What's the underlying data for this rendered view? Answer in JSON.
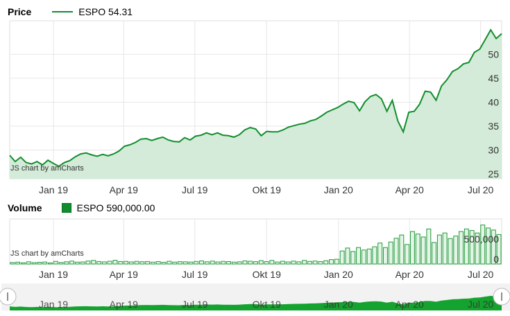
{
  "price_panel": {
    "title": "Price",
    "legend": "ESPO 54.31",
    "credit": "JS chart by amCharts"
  },
  "volume_panel": {
    "title": "Volume",
    "legend": "ESPO 590,000.00",
    "credit": "JS chart by amCharts"
  },
  "toolbar": {
    "draw_icon": "pencil-icon",
    "erase_icon": "eraser-icon"
  },
  "colors": {
    "line": "#118d2d",
    "fill": "#d3ebd8",
    "bar_fill": "#e4f4e6",
    "bar_stroke": "#1f9a3a",
    "scroll_fill": "#14a32e"
  },
  "chart_data": [
    {
      "type": "line",
      "title": "Price",
      "series": [
        {
          "name": "ESPO",
          "last": 54.31
        }
      ],
      "x_ticks": [
        "Jan 19",
        "Apr 19",
        "Jul 19",
        "Okt 19",
        "Jan 20",
        "Apr 20",
        "Jul 20"
      ],
      "y_ticks": [
        25,
        30,
        35,
        40,
        45,
        50
      ],
      "ylim": [
        24,
        57
      ],
      "points": [
        [
          "2018-11-06",
          28.9
        ],
        [
          "2018-11-13",
          27.6
        ],
        [
          "2018-11-20",
          28.5
        ],
        [
          "2018-11-27",
          27.4
        ],
        [
          "2018-12-04",
          27.1
        ],
        [
          "2018-12-11",
          27.6
        ],
        [
          "2018-12-18",
          26.9
        ],
        [
          "2018-12-25",
          27.9
        ],
        [
          "2019-01-01",
          27.2
        ],
        [
          "2019-01-08",
          26.6
        ],
        [
          "2019-01-15",
          27.4
        ],
        [
          "2019-01-22",
          27.8
        ],
        [
          "2019-01-29",
          28.6
        ],
        [
          "2019-02-05",
          29.2
        ],
        [
          "2019-02-12",
          29.4
        ],
        [
          "2019-02-19",
          29.0
        ],
        [
          "2019-02-26",
          28.7
        ],
        [
          "2019-03-05",
          29.1
        ],
        [
          "2019-03-12",
          28.8
        ],
        [
          "2019-03-19",
          29.2
        ],
        [
          "2019-03-26",
          29.8
        ],
        [
          "2019-04-02",
          30.8
        ],
        [
          "2019-04-09",
          31.1
        ],
        [
          "2019-04-16",
          31.6
        ],
        [
          "2019-04-23",
          32.3
        ],
        [
          "2019-04-30",
          32.4
        ],
        [
          "2019-05-07",
          32.0
        ],
        [
          "2019-05-14",
          32.4
        ],
        [
          "2019-05-21",
          32.7
        ],
        [
          "2019-05-28",
          32.1
        ],
        [
          "2019-06-04",
          31.8
        ],
        [
          "2019-06-11",
          31.7
        ],
        [
          "2019-06-18",
          32.6
        ],
        [
          "2019-06-25",
          32.1
        ],
        [
          "2019-07-02",
          32.9
        ],
        [
          "2019-07-09",
          33.1
        ],
        [
          "2019-07-16",
          33.6
        ],
        [
          "2019-07-23",
          33.2
        ],
        [
          "2019-07-30",
          33.6
        ],
        [
          "2019-08-06",
          33.1
        ],
        [
          "2019-08-13",
          33.0
        ],
        [
          "2019-08-20",
          32.7
        ],
        [
          "2019-08-27",
          33.2
        ],
        [
          "2019-09-03",
          34.2
        ],
        [
          "2019-09-10",
          34.7
        ],
        [
          "2019-09-17",
          34.4
        ],
        [
          "2019-09-24",
          33.0
        ],
        [
          "2019-10-01",
          33.9
        ],
        [
          "2019-10-08",
          33.8
        ],
        [
          "2019-10-15",
          33.8
        ],
        [
          "2019-10-22",
          34.2
        ],
        [
          "2019-10-29",
          34.8
        ],
        [
          "2019-11-05",
          35.1
        ],
        [
          "2019-11-12",
          35.4
        ],
        [
          "2019-11-19",
          35.6
        ],
        [
          "2019-11-26",
          36.1
        ],
        [
          "2019-12-03",
          36.4
        ],
        [
          "2019-12-10",
          37.1
        ],
        [
          "2019-12-17",
          37.9
        ],
        [
          "2019-12-24",
          38.4
        ],
        [
          "2019-12-31",
          38.9
        ],
        [
          "2020-01-07",
          39.6
        ],
        [
          "2020-01-14",
          40.2
        ],
        [
          "2020-01-21",
          39.9
        ],
        [
          "2020-01-28",
          38.2
        ],
        [
          "2020-02-04",
          40.1
        ],
        [
          "2020-02-11",
          41.2
        ],
        [
          "2020-02-18",
          41.6
        ],
        [
          "2020-02-25",
          40.7
        ],
        [
          "2020-03-03",
          38.1
        ],
        [
          "2020-03-10",
          40.4
        ],
        [
          "2020-03-17",
          36.1
        ],
        [
          "2020-03-24",
          33.8
        ],
        [
          "2020-03-31",
          37.9
        ],
        [
          "2020-04-07",
          38.1
        ],
        [
          "2020-04-14",
          39.6
        ],
        [
          "2020-04-21",
          42.3
        ],
        [
          "2020-04-28",
          42.1
        ],
        [
          "2020-05-05",
          40.4
        ],
        [
          "2020-05-12",
          43.4
        ],
        [
          "2020-05-19",
          44.7
        ],
        [
          "2020-05-26",
          46.4
        ],
        [
          "2020-06-02",
          47.0
        ],
        [
          "2020-06-09",
          48.0
        ],
        [
          "2020-06-16",
          48.3
        ],
        [
          "2020-06-23",
          50.4
        ],
        [
          "2020-06-30",
          51.1
        ],
        [
          "2020-07-07",
          53.1
        ],
        [
          "2020-07-14",
          55.1
        ],
        [
          "2020-07-21",
          53.3
        ],
        [
          "2020-07-28",
          54.31
        ]
      ]
    },
    {
      "type": "bar",
      "title": "Volume",
      "series": [
        {
          "name": "ESPO",
          "last": 590000.0
        }
      ],
      "x_ticks": [
        "Jan 19",
        "Apr 19",
        "Jul 19",
        "Okt 19",
        "Jan 20",
        "Apr 20",
        "Jul 20"
      ],
      "y_ticks": [
        0,
        500000
      ],
      "y_tick_labels": [
        "0",
        "500,000"
      ],
      "ylim": [
        0,
        900000
      ],
      "values": [
        30000,
        38000,
        25000,
        45000,
        28000,
        35000,
        40000,
        22000,
        52000,
        30000,
        45000,
        58000,
        38000,
        42000,
        60000,
        72000,
        50000,
        43000,
        56000,
        75000,
        48000,
        52000,
        42000,
        53000,
        46000,
        50000,
        37000,
        48000,
        34000,
        55000,
        38000,
        47000,
        44000,
        39000,
        51000,
        62000,
        45000,
        58000,
        42000,
        53000,
        49000,
        38000,
        44000,
        62000,
        55000,
        47000,
        68000,
        49000,
        72000,
        40000,
        55000,
        41000,
        58000,
        45000,
        72000,
        52000,
        60000,
        48000,
        66000,
        88000,
        95000,
        260000,
        320000,
        250000,
        330000,
        280000,
        300000,
        345000,
        420000,
        330000,
        440000,
        515000,
        580000,
        390000,
        650000,
        600000,
        540000,
        700000,
        430000,
        580000,
        620000,
        510000,
        560000,
        650000,
        700000,
        670000,
        620000,
        780000,
        720000,
        680000,
        590000
      ]
    }
  ]
}
